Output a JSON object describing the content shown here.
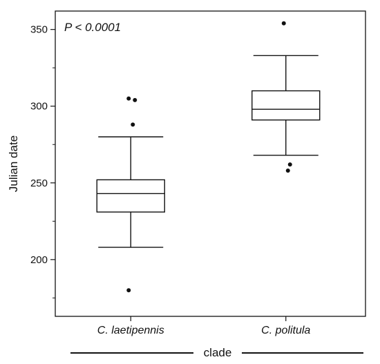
{
  "chart_data": {
    "type": "box",
    "xlabel": "clade",
    "ylabel": "Julian date",
    "annotation": "P < 0.0001",
    "ylim": [
      163,
      362
    ],
    "yticks": [
      200,
      250,
      300,
      350
    ],
    "yticks_minor": [
      175,
      225,
      275,
      325
    ],
    "grid": false,
    "categories": [
      "C. laetipennis",
      "C. politula"
    ],
    "boxes": [
      {
        "category": "C. laetipennis",
        "whisker_low": 208,
        "q1": 231,
        "median": 243,
        "q3": 252,
        "whisker_high": 280,
        "outliers": [
          305,
          304,
          288,
          180
        ]
      },
      {
        "category": "C. politula",
        "whisker_low": 268,
        "q1": 291,
        "median": 298,
        "q3": 310,
        "whisker_high": 333,
        "outliers": [
          354,
          262,
          258
        ]
      }
    ]
  }
}
